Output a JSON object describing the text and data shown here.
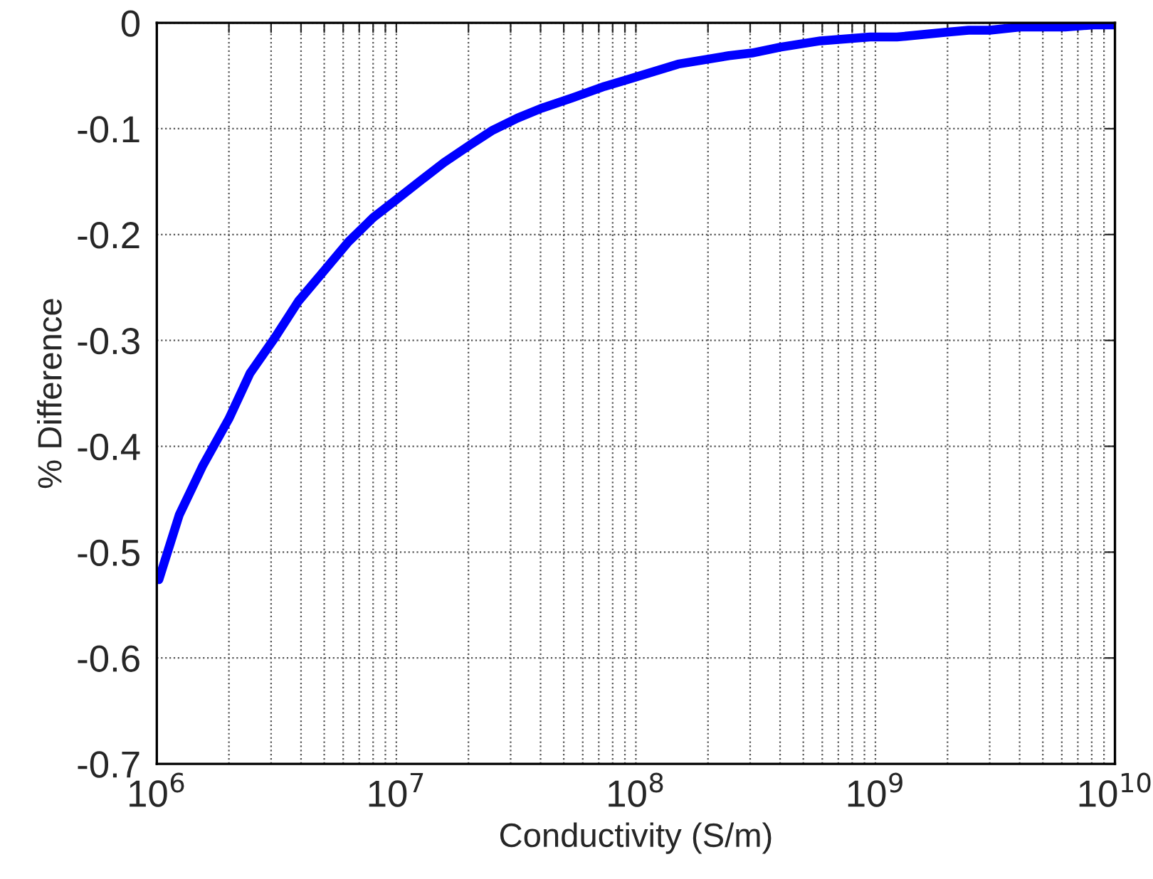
{
  "chart_data": {
    "type": "line",
    "xlabel": "Conductivity (S/m)",
    "ylabel": "% Difference",
    "log": "x",
    "grid": true,
    "marker": "none",
    "line_style": "solid",
    "xlim": [
      1000000,
      10000000000
    ],
    "ylim": [
      -0.7,
      0
    ],
    "xticks": [
      {
        "value": 1000000,
        "label": "10$^{6}$"
      },
      {
        "value": 2000000,
        "label": null
      },
      {
        "value": 3000000,
        "label": null
      },
      {
        "value": 4000000,
        "label": null
      },
      {
        "value": 5000000,
        "label": null
      },
      {
        "value": 6000000,
        "label": null
      },
      {
        "value": 7000000,
        "label": null
      },
      {
        "value": 8000000,
        "label": null
      },
      {
        "value": 9000000,
        "label": null
      },
      {
        "value": 10000000,
        "label": "10$^{7}$"
      },
      {
        "value": 20000000,
        "label": null
      },
      {
        "value": 30000000,
        "label": null
      },
      {
        "value": 40000000,
        "label": null
      },
      {
        "value": 50000000,
        "label": null
      },
      {
        "value": 60000000,
        "label": null
      },
      {
        "value": 70000000,
        "label": null
      },
      {
        "value": 80000000,
        "label": null
      },
      {
        "value": 90000000,
        "label": null
      },
      {
        "value": 100000000,
        "label": "10$^{8}$"
      },
      {
        "value": 200000000,
        "label": null
      },
      {
        "value": 300000000,
        "label": null
      },
      {
        "value": 400000000,
        "label": null
      },
      {
        "value": 500000000,
        "label": null
      },
      {
        "value": 600000000,
        "label": null
      },
      {
        "value": 700000000,
        "label": null
      },
      {
        "value": 800000000,
        "label": null
      },
      {
        "value": 900000000,
        "label": null
      },
      {
        "value": 1000000000,
        "label": "10$^{9}$"
      },
      {
        "value": 2000000000,
        "label": null
      },
      {
        "value": 3000000000,
        "label": null
      },
      {
        "value": 4000000000,
        "label": null
      },
      {
        "value": 5000000000,
        "label": null
      },
      {
        "value": 6000000000,
        "label": null
      },
      {
        "value": 7000000000,
        "label": null
      },
      {
        "value": 8000000000,
        "label": null
      },
      {
        "value": 9000000000,
        "label": null
      },
      {
        "value": 10000000000,
        "label": "10$^{10}$"
      }
    ],
    "yticks": [
      -0.7,
      -0.6,
      -0.5,
      -0.4,
      -0.3,
      -0.2,
      -0.1,
      0
    ],
    "series": [
      {
        "color": "#0000ff",
        "x": [
          1020000,
          1240000,
          1550000,
          2000000,
          2450000,
          3100000,
          3900000,
          5000000,
          6300000,
          8000000,
          10000000,
          12800000,
          15800000,
          20400000,
          25000000,
          32000000,
          40000000,
          54000000,
          74000000,
          91000000,
          150000000,
          245000000,
          305000000,
          400000000,
          590000000,
          950000000,
          1230000000,
          1950000000,
          2450000000,
          3000000000,
          4000000000,
          6200000000,
          8100000000,
          10000000000
        ],
        "values": [
          -0.526,
          -0.465,
          -0.419,
          -0.374,
          -0.331,
          -0.298,
          -0.263,
          -0.234,
          -0.207,
          -0.184,
          -0.167,
          -0.148,
          -0.132,
          -0.115,
          -0.102,
          -0.09,
          -0.081,
          -0.071,
          -0.06,
          -0.054,
          -0.039,
          -0.031,
          -0.0285,
          -0.023,
          -0.017,
          -0.0134,
          -0.0134,
          -0.009,
          -0.007,
          -0.007,
          -0.004,
          -0.004,
          -0.002,
          -0.002
        ]
      }
    ]
  }
}
